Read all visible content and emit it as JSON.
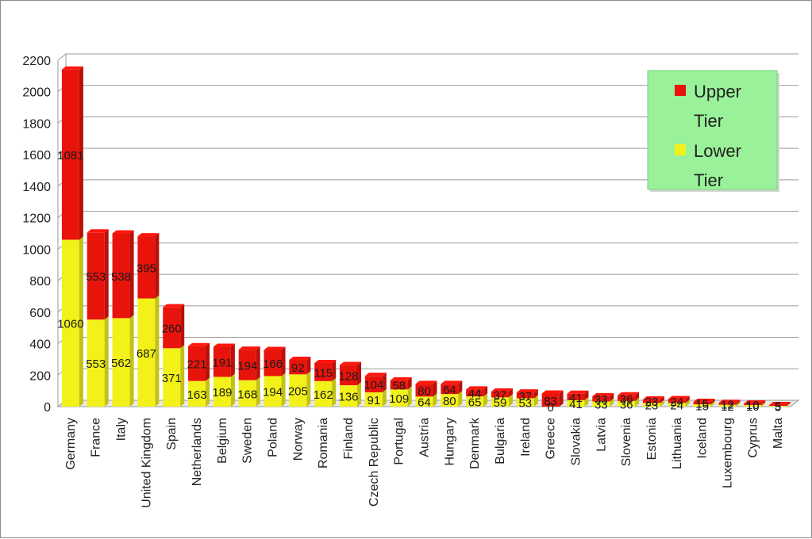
{
  "chart_data": {
    "type": "bar",
    "stacked": true,
    "three_d": true,
    "categories": [
      "Germany",
      "France",
      "Italy",
      "United Kingdom",
      "Spain",
      "Netherlands",
      "Belgium",
      "Sweden",
      "Poland",
      "Norway",
      "Romania",
      "Finland",
      "Czech Republic",
      "Portugal",
      "Austria",
      "Hungary",
      "Denmark",
      "Bulgaria",
      "Ireland",
      "Greece",
      "Slovakia",
      "Latvia",
      "Slovenia",
      "Estonia",
      "Lithuania",
      "Iceland",
      "Luxembourg",
      "Cyprus",
      "Malta"
    ],
    "series": [
      {
        "name": "Lower Tier",
        "color": "#f2f21a",
        "values": [
          1060,
          553,
          562,
          687,
          371,
          163,
          189,
          168,
          194,
          205,
          162,
          136,
          91,
          109,
          64,
          80,
          65,
          59,
          53,
          0,
          41,
          33,
          36,
          23,
          24,
          15,
          12,
          10,
          5
        ]
      },
      {
        "name": "Upper Tier",
        "color": "#e8140c",
        "values": [
          1081,
          553,
          538,
          395,
          260,
          221,
          191,
          194,
          166,
          92,
          115,
          128,
          104,
          58,
          80,
          64,
          44,
          37,
          37,
          83,
          41,
          33,
          36,
          23,
          24,
          15,
          12,
          10,
          5
        ]
      }
    ],
    "series_labels": [
      [
        "1060",
        "553",
        "562",
        "687",
        "371",
        "163",
        "189",
        "168",
        "194",
        "205",
        "162",
        "136",
        "91",
        "109",
        "64",
        "80",
        "65",
        "59",
        "53",
        "0",
        "41",
        "33",
        "36",
        "23",
        "24",
        "15",
        "12",
        "10",
        "5"
      ],
      [
        "1081",
        "553",
        "538",
        "395",
        "260",
        "221",
        "191",
        "194",
        "166",
        "92",
        "115",
        "128",
        "104",
        "58",
        "80",
        "64",
        "44",
        "37",
        "37",
        "83",
        "41",
        "33",
        "36",
        "23",
        "24",
        "15",
        "12",
        "10",
        "5"
      ]
    ],
    "yticks": [
      "0",
      "200",
      "400",
      "600",
      "800",
      "1000",
      "1200",
      "1400",
      "1600",
      "1800",
      "2000",
      "2200"
    ],
    "ylim": [
      0,
      2200
    ],
    "grid": true,
    "legend": {
      "position": "top-right",
      "background": "#99f299",
      "entries": [
        {
          "lines": [
            "Upper",
            "Tier"
          ],
          "color": "#e8140c"
        },
        {
          "lines": [
            "Lower",
            "Tier"
          ],
          "color": "#f2f21a"
        }
      ]
    },
    "title": "",
    "xlabel": "",
    "ylabel": ""
  }
}
